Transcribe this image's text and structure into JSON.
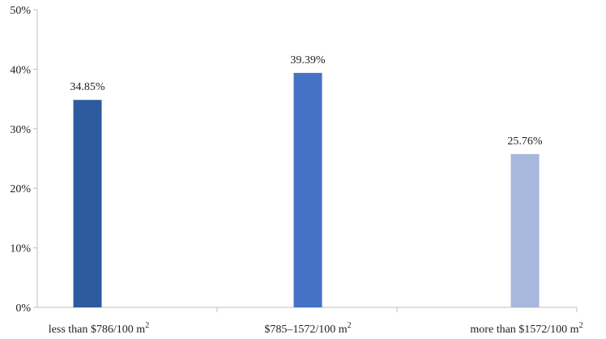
{
  "chart_data": {
    "type": "bar",
    "categories": [
      {
        "base": "less than $786/100 m",
        "sup": "2"
      },
      {
        "base": "$785–1572/100 m",
        "sup": "2"
      },
      {
        "base": "more than $1572/100 m",
        "sup": "2"
      }
    ],
    "values": [
      34.85,
      39.39,
      25.76
    ],
    "value_labels": [
      "34.85%",
      "39.39%",
      "25.76%"
    ],
    "bar_colors": [
      "#2E5A9E",
      "#4472C4",
      "#A8B7DC"
    ],
    "ylim": [
      0,
      50
    ],
    "yticks": [
      0,
      10,
      20,
      30,
      40,
      50
    ],
    "ytick_labels": [
      "0%",
      "10%",
      "20%",
      "30%",
      "40%",
      "50%"
    ],
    "grid": false,
    "title": "",
    "xlabel": "",
    "ylabel": ""
  }
}
